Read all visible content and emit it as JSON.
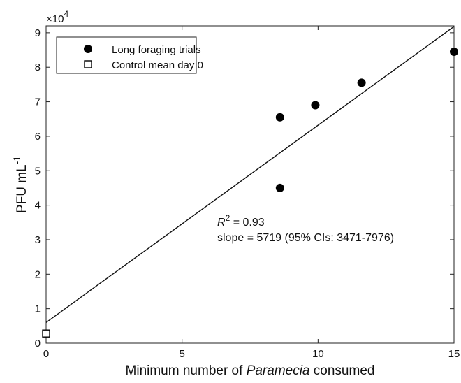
{
  "chart_data": {
    "type": "scatter",
    "xlabel_prefix": "Minimum number of ",
    "xlabel_italic": "Paramecia",
    "xlabel_suffix": " consumed",
    "ylabel_main": "PFU mL",
    "ylabel_sup": "-1",
    "y_exponent_base": "×10",
    "y_exponent_power": "4",
    "xlim": [
      0,
      15
    ],
    "ylim": [
      0,
      9.2
    ],
    "x_ticks": [
      0,
      5,
      10,
      15
    ],
    "y_ticks": [
      0,
      1,
      2,
      3,
      4,
      5,
      6,
      7,
      8,
      9
    ],
    "grid": false,
    "legend_position": "top-left",
    "series": [
      {
        "name": "Long foraging trials",
        "marker": "filled-circle",
        "color": "#000000",
        "points": [
          {
            "x": 8.6,
            "y": 6.55
          },
          {
            "x": 8.6,
            "y": 4.5
          },
          {
            "x": 9.9,
            "y": 6.9
          },
          {
            "x": 11.6,
            "y": 7.55
          },
          {
            "x": 15.0,
            "y": 8.45
          }
        ]
      },
      {
        "name": "Control mean day 0",
        "marker": "open-square",
        "color": "#000000",
        "points": [
          {
            "x": 0.0,
            "y": 0.28
          }
        ]
      }
    ],
    "fit_line": {
      "x": [
        0,
        15
      ],
      "y": [
        0.6,
        9.18
      ]
    },
    "annotation": {
      "r_symbol": "R",
      "r_sup": "2",
      "r_value": " = 0.93",
      "slope_text": "slope = 5719 (95% CIs: 3471-7976)"
    }
  }
}
